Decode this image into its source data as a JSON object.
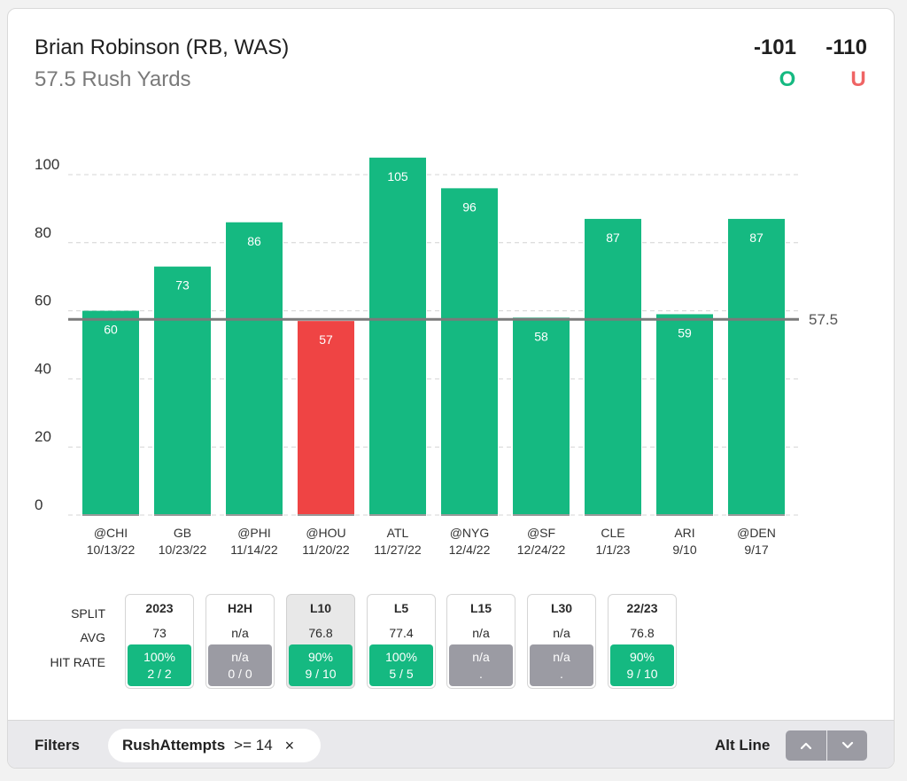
{
  "header": {
    "player": "Brian Robinson (RB, WAS)",
    "prop": "57.5 Rush Yards",
    "over_odds": "-101",
    "under_odds": "-110",
    "over_label": "O",
    "under_label": "U"
  },
  "colors": {
    "over": "#15b981",
    "under": "#ef4444",
    "neutral": "#9b9ba3",
    "text": "#1f1f1f"
  },
  "chart_data": {
    "type": "bar",
    "categories": [
      "@CHI",
      "GB",
      "@PHI",
      "@HOU",
      "ATL",
      "@NYG",
      "@SF",
      "CLE",
      "ARI",
      "@DEN"
    ],
    "dates": [
      "10/13/22",
      "10/23/22",
      "11/14/22",
      "11/20/22",
      "11/27/22",
      "12/4/22",
      "12/24/22",
      "1/1/23",
      "9/10",
      "9/17"
    ],
    "values": [
      60,
      73,
      86,
      57,
      105,
      96,
      58,
      87,
      59,
      87
    ],
    "line": 57.5,
    "line_label": "57.5",
    "ylim": [
      0,
      105
    ],
    "yticks": [
      0,
      20,
      40,
      60,
      80,
      100
    ],
    "grid": true
  },
  "splits": {
    "row_labels": [
      "SPLIT",
      "AVG",
      "HIT RATE"
    ],
    "columns": [
      {
        "label": "2023",
        "avg": "73",
        "hit_pct": "100%",
        "hit_count": "2 / 2",
        "status": "over",
        "active": false
      },
      {
        "label": "H2H",
        "avg": "n/a",
        "hit_pct": "n/a",
        "hit_count": "0 / 0",
        "status": "neutral",
        "active": false
      },
      {
        "label": "L10",
        "avg": "76.8",
        "hit_pct": "90%",
        "hit_count": "9 / 10",
        "status": "over",
        "active": true
      },
      {
        "label": "L5",
        "avg": "77.4",
        "hit_pct": "100%",
        "hit_count": "5 / 5",
        "status": "over",
        "active": false
      },
      {
        "label": "L15",
        "avg": "n/a",
        "hit_pct": "n/a",
        "hit_count": ".",
        "status": "neutral",
        "active": false
      },
      {
        "label": "L30",
        "avg": "n/a",
        "hit_pct": "n/a",
        "hit_count": ".",
        "status": "neutral",
        "active": false
      },
      {
        "label": "22/23",
        "avg": "76.8",
        "hit_pct": "90%",
        "hit_count": "9 / 10",
        "status": "over",
        "active": false
      }
    ]
  },
  "footer": {
    "filters_label": "Filters",
    "filter_name": "RushAttempts",
    "filter_value": ">= 14",
    "filter_close": "×",
    "alt_line_label": "Alt Line"
  }
}
